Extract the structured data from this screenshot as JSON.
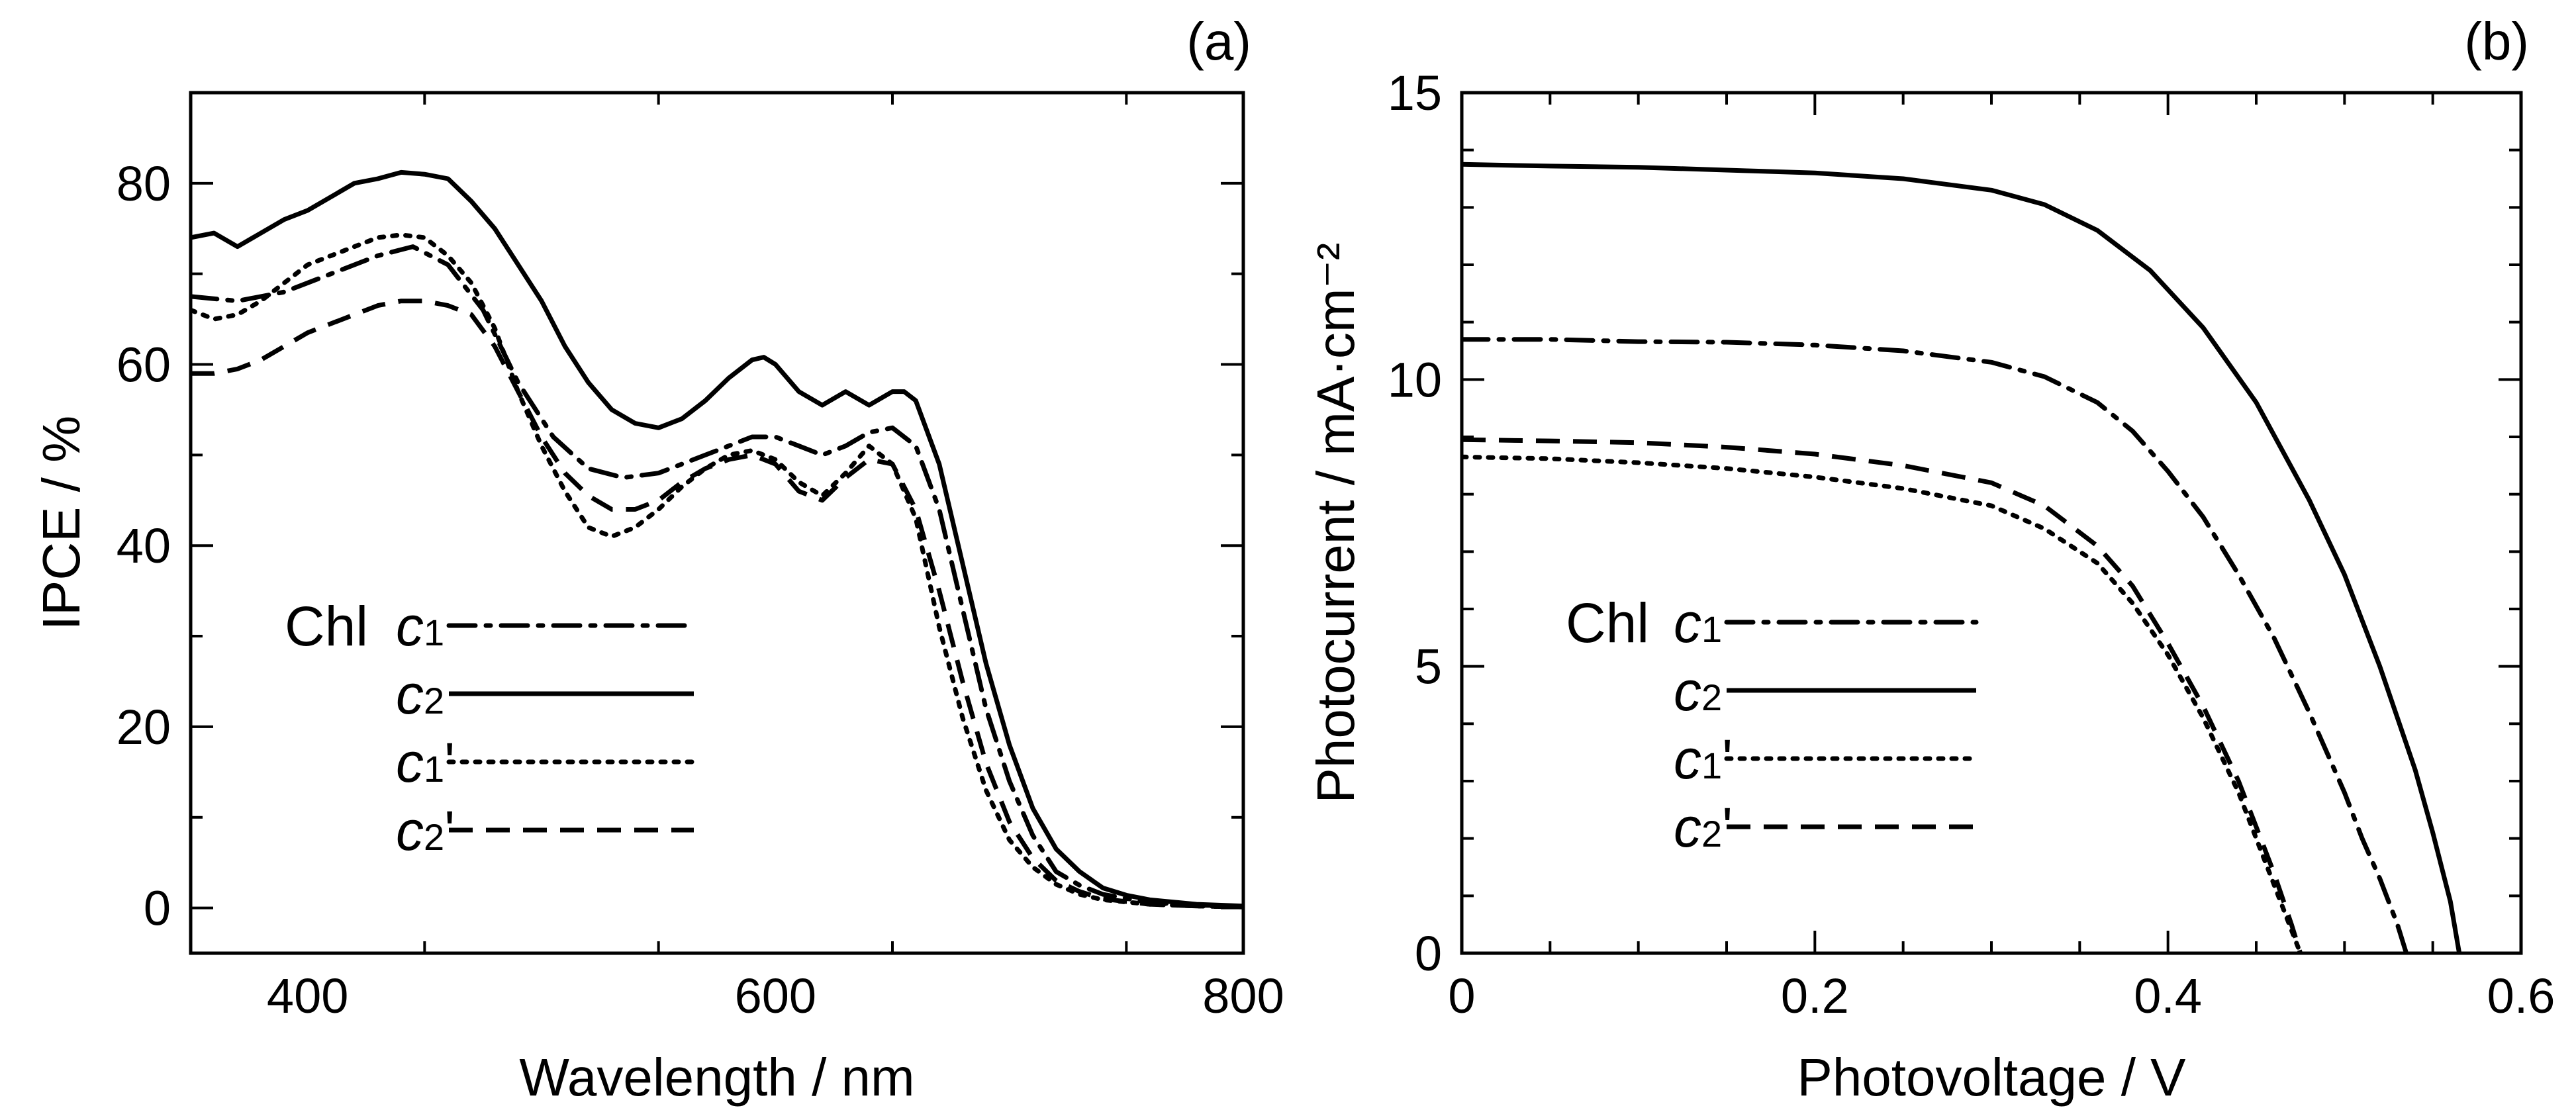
{
  "chart_data": [
    {
      "type": "line",
      "panel_label": "(a)",
      "xlabel": "Wavelength / nm",
      "ylabel": "IPCE / %",
      "xlim": [
        350,
        800
      ],
      "ylim": [
        -5,
        90
      ],
      "xticks": [
        400,
        600,
        800
      ],
      "yticks": [
        0,
        20,
        40,
        60,
        80
      ],
      "grid": false,
      "legend_position": "lower-left",
      "legend_prefix": "Chl",
      "series": [
        {
          "name": "c1",
          "label_main": "c",
          "label_sub": "1",
          "label_prime": "",
          "dash": "dashdot",
          "x": [
            350,
            370,
            390,
            410,
            430,
            445,
            460,
            475,
            490,
            505,
            520,
            535,
            550,
            570,
            590,
            600,
            610,
            620,
            630,
            640,
            650,
            660,
            670,
            680,
            690,
            700,
            710,
            720,
            730,
            740,
            760,
            780,
            800
          ],
          "y": [
            67.5,
            67,
            68,
            70,
            72,
            73,
            71,
            66,
            58,
            52,
            48.5,
            47.5,
            48,
            50,
            52,
            52,
            51,
            50,
            51,
            52.5,
            53,
            51,
            44,
            33,
            22,
            14,
            8,
            4,
            2.5,
            1.5,
            0.6,
            0.3,
            0.2
          ]
        },
        {
          "name": "c2",
          "label_main": "c",
          "label_sub": "2",
          "label_prime": "",
          "dash": "solid",
          "x": [
            350,
            360,
            370,
            380,
            390,
            400,
            410,
            420,
            430,
            440,
            450,
            460,
            470,
            480,
            490,
            500,
            510,
            520,
            530,
            540,
            550,
            560,
            570,
            580,
            590,
            595,
            600,
            610,
            620,
            630,
            640,
            650,
            655,
            660,
            670,
            680,
            690,
            700,
            710,
            720,
            730,
            740,
            750,
            760,
            780,
            800
          ],
          "y": [
            74,
            74.5,
            73,
            74.5,
            76,
            77,
            78.5,
            80,
            80.5,
            81.2,
            81,
            80.5,
            78,
            75,
            71,
            67,
            62,
            58,
            55,
            53.5,
            53,
            54,
            56,
            58.5,
            60.5,
            60.8,
            60,
            57,
            55.5,
            57,
            55.5,
            57,
            57,
            56,
            49,
            38,
            27,
            18,
            11,
            6.5,
            4,
            2.2,
            1.4,
            0.9,
            0.4,
            0.2
          ]
        },
        {
          "name": "c1'",
          "label_main": "c",
          "label_sub": "1",
          "label_prime": "'",
          "dash": "dotted",
          "x": [
            350,
            360,
            370,
            380,
            390,
            400,
            410,
            420,
            430,
            440,
            450,
            460,
            470,
            480,
            490,
            500,
            510,
            520,
            530,
            540,
            550,
            560,
            570,
            580,
            590,
            600,
            610,
            620,
            630,
            640,
            650,
            660,
            670,
            680,
            690,
            700,
            710,
            720,
            730,
            740,
            760,
            780,
            800
          ],
          "y": [
            66,
            65,
            65.5,
            67,
            69,
            71,
            72,
            73,
            74,
            74.3,
            74,
            72,
            69,
            64,
            57,
            51,
            46,
            42,
            41,
            42,
            44,
            46.5,
            48.5,
            50,
            50.5,
            49.5,
            47,
            45.5,
            48,
            51,
            49,
            43,
            31,
            21,
            13,
            7.5,
            4.5,
            2.6,
            1.5,
            0.9,
            0.4,
            0.2,
            0.1
          ]
        },
        {
          "name": "c2'",
          "label_main": "c",
          "label_sub": "2",
          "label_prime": "'",
          "dash": "dashed",
          "x": [
            350,
            360,
            370,
            380,
            390,
            400,
            410,
            420,
            430,
            440,
            450,
            460,
            470,
            480,
            490,
            500,
            510,
            520,
            530,
            540,
            550,
            560,
            570,
            580,
            590,
            600,
            610,
            620,
            630,
            640,
            650,
            660,
            670,
            680,
            690,
            700,
            710,
            720,
            730,
            740,
            760,
            780,
            800
          ],
          "y": [
            59,
            59,
            59.5,
            60.5,
            62,
            63.5,
            64.5,
            65.5,
            66.5,
            67,
            67,
            66.5,
            65.5,
            62,
            57,
            52,
            48,
            45.5,
            44,
            44,
            45,
            47,
            48.5,
            49.5,
            50,
            49,
            46,
            45,
            47.5,
            49.5,
            49,
            44,
            35,
            25,
            16,
            9.5,
            5.5,
            3,
            1.8,
            1,
            0.4,
            0.2,
            0.1
          ]
        }
      ]
    },
    {
      "type": "line",
      "panel_label": "(b)",
      "xlabel": "Photovoltage / V",
      "ylabel": "Photocurrent / mA·cm⁻²",
      "xlim": [
        0,
        0.6
      ],
      "ylim": [
        0,
        15
      ],
      "xticks": [
        0,
        0.2,
        0.4,
        0.6
      ],
      "xtick_labels": [
        "0",
        "0.2",
        "0.4",
        "0.6"
      ],
      "yticks": [
        0,
        5,
        10,
        15
      ],
      "grid": false,
      "legend_position": "lower-left",
      "legend_prefix": "Chl",
      "series": [
        {
          "name": "c1",
          "label_main": "c",
          "label_sub": "1",
          "label_prime": "",
          "dash": "dashdot",
          "x": [
            0,
            0.05,
            0.1,
            0.15,
            0.2,
            0.25,
            0.3,
            0.33,
            0.36,
            0.38,
            0.4,
            0.42,
            0.44,
            0.46,
            0.48,
            0.5,
            0.51,
            0.52,
            0.53,
            0.535
          ],
          "y": [
            10.7,
            10.7,
            10.66,
            10.65,
            10.6,
            10.5,
            10.3,
            10.05,
            9.6,
            9.1,
            8.4,
            7.6,
            6.6,
            5.5,
            4.2,
            2.8,
            2.0,
            1.3,
            0.5,
            0
          ]
        },
        {
          "name": "c2",
          "label_main": "c",
          "label_sub": "2",
          "label_prime": "",
          "dash": "solid",
          "x": [
            0,
            0.05,
            0.1,
            0.15,
            0.2,
            0.25,
            0.3,
            0.33,
            0.36,
            0.39,
            0.42,
            0.45,
            0.48,
            0.5,
            0.52,
            0.54,
            0.55,
            0.56,
            0.565
          ],
          "y": [
            13.75,
            13.72,
            13.7,
            13.65,
            13.6,
            13.5,
            13.3,
            13.05,
            12.6,
            11.9,
            10.9,
            9.6,
            7.9,
            6.6,
            5.0,
            3.2,
            2.1,
            0.9,
            0
          ]
        },
        {
          "name": "c1'",
          "label_main": "c",
          "label_sub": "1",
          "label_prime": "'",
          "dash": "dotted",
          "x": [
            0,
            0.05,
            0.1,
            0.15,
            0.2,
            0.25,
            0.3,
            0.33,
            0.36,
            0.38,
            0.4,
            0.42,
            0.44,
            0.45,
            0.46,
            0.47,
            0.475
          ],
          "y": [
            8.65,
            8.62,
            8.55,
            8.45,
            8.3,
            8.1,
            7.8,
            7.4,
            6.8,
            6.1,
            5.2,
            4.1,
            2.8,
            2.0,
            1.2,
            0.4,
            0
          ]
        },
        {
          "name": "c2'",
          "label_main": "c",
          "label_sub": "2",
          "label_prime": "'",
          "dash": "dashed",
          "x": [
            0,
            0.05,
            0.1,
            0.15,
            0.2,
            0.25,
            0.3,
            0.33,
            0.36,
            0.38,
            0.4,
            0.42,
            0.44,
            0.45,
            0.46,
            0.47,
            0.475
          ],
          "y": [
            8.95,
            8.93,
            8.9,
            8.82,
            8.7,
            8.5,
            8.2,
            7.8,
            7.1,
            6.4,
            5.4,
            4.3,
            3.0,
            2.2,
            1.4,
            0.5,
            0
          ]
        }
      ]
    }
  ]
}
